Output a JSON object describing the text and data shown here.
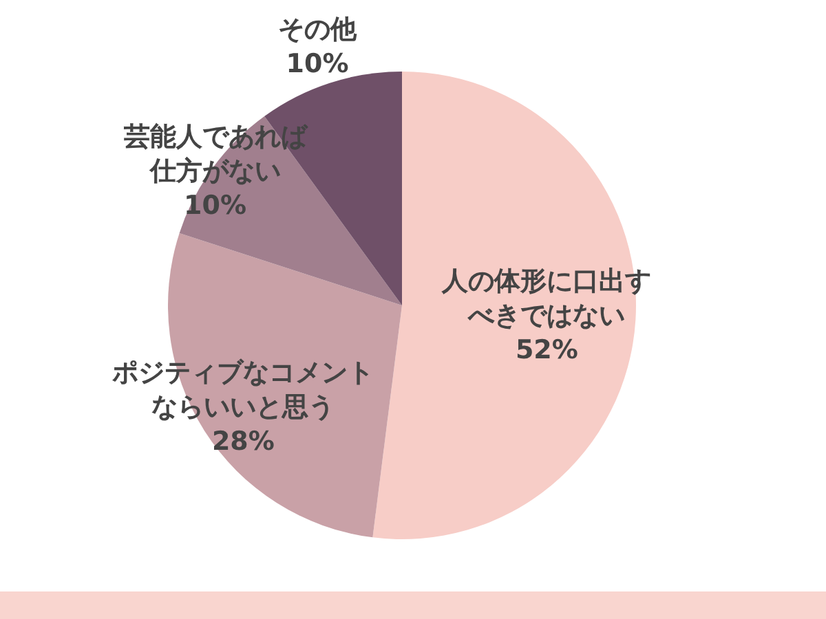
{
  "chart_data": {
    "type": "pie",
    "categories": [
      "人の体形に口出すべきではない",
      "ポジティブなコメントならいいと思う",
      "芸能人であれば仕方がない",
      "その他"
    ],
    "values": [
      52,
      28,
      10,
      10
    ],
    "value_labels": [
      "52%",
      "28%",
      "10%",
      "10%"
    ],
    "colors": [
      "#f7cdc7",
      "#c9a1a7",
      "#a17f8e",
      "#6f5068"
    ]
  }
}
